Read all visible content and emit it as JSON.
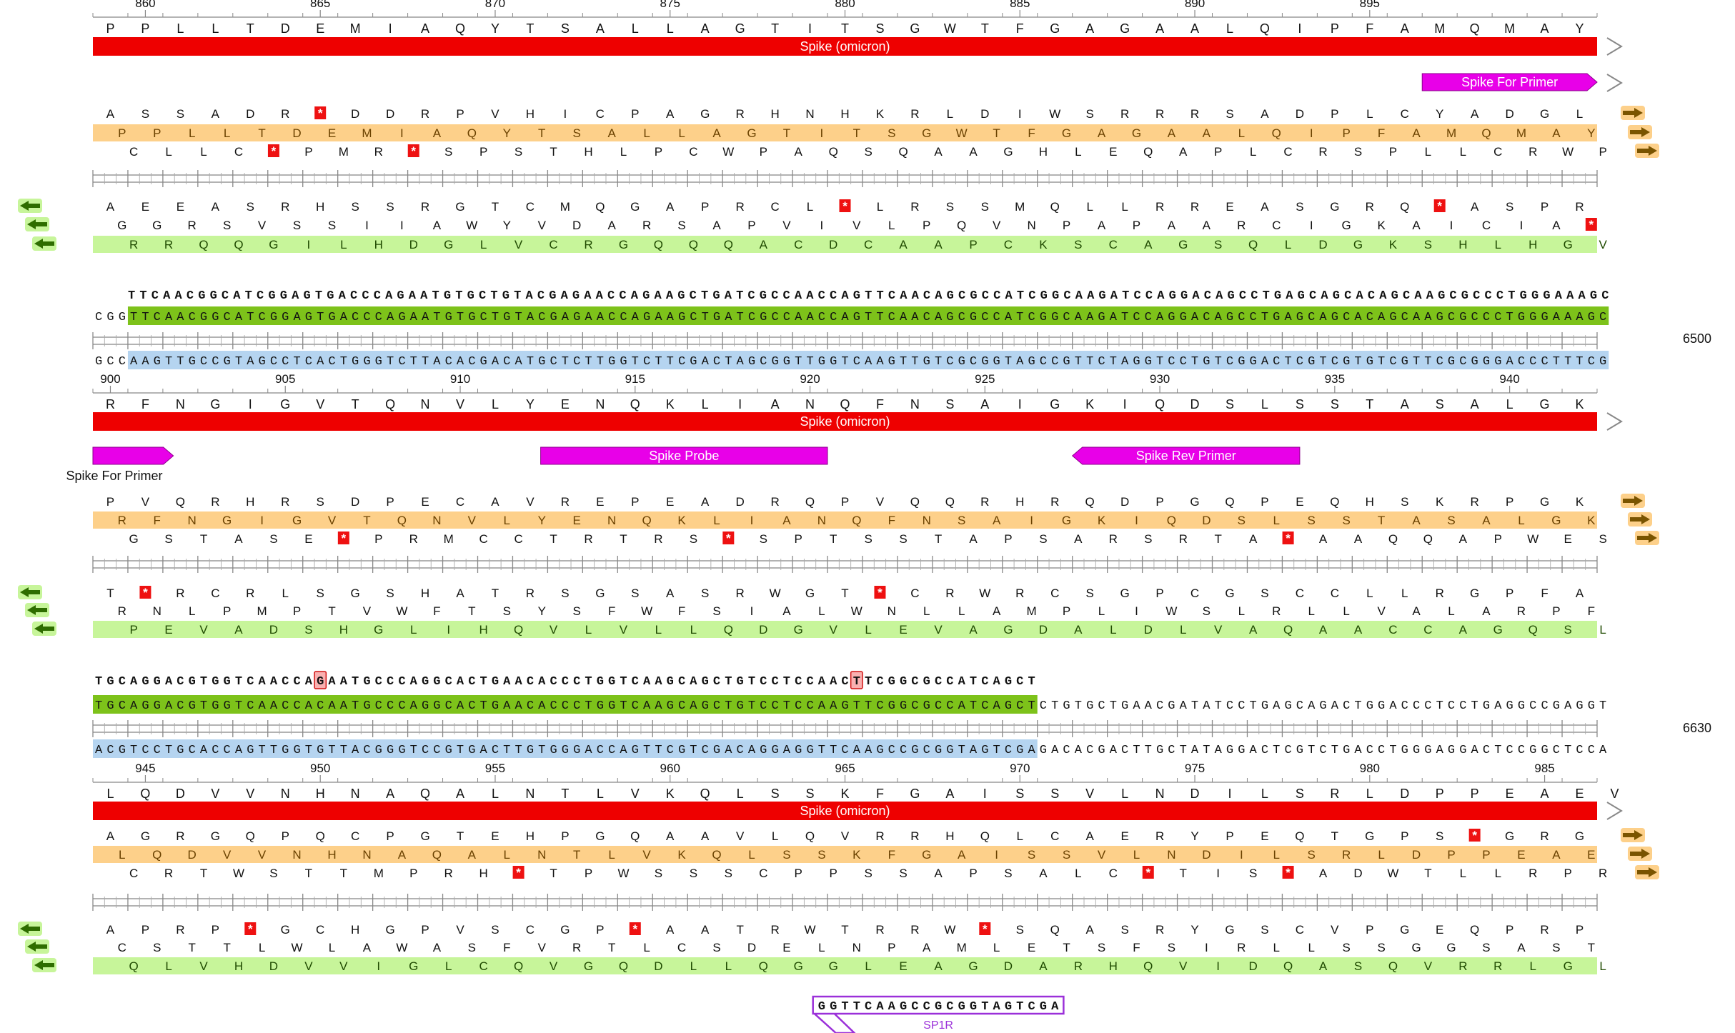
{
  "blocks": [
    {
      "num_row": {
        "marks": [
          {
            "label": "860",
            "num": 860
          },
          {
            "label": "865",
            "num": 865
          },
          {
            "label": "870",
            "num": 870
          },
          {
            "label": "875",
            "num": 875
          },
          {
            "label": "880",
            "num": 880
          },
          {
            "label": "885",
            "num": 885
          },
          {
            "label": "890",
            "num": 890
          },
          {
            "label": "895",
            "num": 895
          }
        ]
      },
      "aa_row": "PPLLTDEMIAQYTSALLAGTITSGWTFGAGAALQIPFAMQMAY",
      "feature_label": "Spike (omicron)",
      "primers": [
        {
          "label": "Spike For Primer",
          "dir": "right",
          "start": 38,
          "end": 43
        }
      ],
      "frames_top": [
        {
          "seq": "ASSADR*DDRPVHICPAGRHNHKRLDIWSRRRSADPLCYADGL",
          "style": "plain"
        },
        {
          "seq": "PPLLTDEMIAQYTSALLAGTITSGWTFGAGAALQIPFAMQMAY",
          "style": "orange"
        },
        {
          "seq": "CLLC*PMR*SPSTHLPCWPAQSQAAGHLEQAPLCRSPLLCRWPT",
          "style": "plain"
        }
      ],
      "frames_bottom": [
        {
          "seq": "AEEASRHSSRGTCMQGAPRCL*LRSSMQLLRREASGRQ*ASPRG",
          "style": "plain"
        },
        {
          "seq": "GGRSVSSIIAWYVDARSAPVIVLPQVNPAPAARCIGKAICIA*V",
          "style": "plain"
        },
        {
          "seq": "RRQQGILHDGLVCRGQQQACDCAAPCKSCAGSQLDGKSHLHGV",
          "style": "green"
        }
      ]
    },
    {
      "top_dna_label": "TTCAACGGCATCGGAGTGACCCAGAATGTGCTGTACGAGAACCAGAAGCTGATCGCCAACCAGTTCAACAGCGCCATCGGCAAGATCCAGGACAGCCTGAGCAGCACAGCAAGCGCCCTGGGAAAGC",
      "fwd_prefix": "CGG",
      "fwd_highlight": "TTCAACGGCATCGGAGTGACCCAGAATGTGCTGTACGAGAACCAGAAGCTGATCGCCAACCAGTTCAACAGCGCCATCGGCAAGATCCAGGACAGCCTGAGCAGCACAGCAAGCGCCCTGGGAAAGC",
      "fwd_suffix": "",
      "rev_prefix": "GCC",
      "rev_highlight": "AAGTTGCCGTAGCCTCACTGGGTCTTACACGACATGCTCTTGGTCTTCGACTAGCGGTTGGTCAAGTTGTCGCGGTAGCCGTTCTAGGTCCTGTCGGACTCGTCGTGTCGTTCGCGGGACCCTTTCG",
      "rev_suffix": "",
      "position_label": "6500",
      "num_row": {
        "marks": [
          {
            "label": "900",
            "num": 900
          },
          {
            "label": "905",
            "num": 905
          },
          {
            "label": "910",
            "num": 910
          },
          {
            "label": "915",
            "num": 915
          },
          {
            "label": "920",
            "num": 920
          },
          {
            "label": "925",
            "num": 925
          },
          {
            "label": "930",
            "num": 930
          },
          {
            "label": "935",
            "num": 935
          },
          {
            "label": "940",
            "num": 940
          }
        ]
      },
      "aa_row": "RFNGIGVTQNVLYENQKLIANQFNSAIGKIQDSLSSTASALGK",
      "feature_label": "Spike (omicron)",
      "primers": [
        {
          "label": "Spike For Primer",
          "dir": "right",
          "start": 0,
          "end": 2.3,
          "label_below": true
        },
        {
          "label": "Spike Probe",
          "dir": "none",
          "start": 12.8,
          "end": 21
        },
        {
          "label": "Spike Rev Primer",
          "dir": "left",
          "start": 28,
          "end": 34.5
        }
      ],
      "frames_top": [
        {
          "seq": "PVQRHRSDPECAVREPEADRQPVQQRHRQDPGQPEQHSKRPGKA",
          "style": "plain"
        },
        {
          "seq": "RFNGIGVTQNVLYENQKLIANQFNSAIGKIQDSLSSTASALGK",
          "style": "orange"
        },
        {
          "seq": "GSTASE*PRMCCTRTRS*SPTSSTAPSARSRTA*AAQQAPWES",
          "style": "plain"
        }
      ],
      "frames_bottom": [
        {
          "seq": "T*RCRLSGSHATRSGSASRWGT*CRWRCSGPCGSCCLLRGPFA",
          "style": "plain"
        },
        {
          "seq": "RNLPMPTVWFTSYSFWFSIALWNLLAMPLIWSLRLLVALARPFS",
          "style": "plain"
        },
        {
          "seq": "PEVADSHGLIHQVLVLLQDGVLEVAGDALDLVAQAACCAGQSL",
          "style": "green"
        }
      ]
    },
    {
      "top_dna_label": "TGCAGGACGTGGTCAACCAGAATGCCCAGGCACTGAACACCCTGGTCAAGCAGCTGTCCTCCAACTTCGGCGCCATCAGCT",
      "mismatch_indices": [
        19,
        65
      ],
      "fwd_prefix": "",
      "fwd_highlight": "TGCAGGACGTGGTCAACCACAATGCCCAGGCACTGAACACCCTGGTCAAGCAGCTGTCCTCCAAGTTCGGCGCCATCAGCT",
      "fwd_suffix": "CTGTGCTGAACGATATCCTGAGCAGACTGGACCCTCCTGAGGCCGAGGT",
      "rev_prefix": "",
      "rev_highlight": "ACGTCCTGCACCAGTTGGTGTTACGGGTCCGTGACTTGTGGGACCAGTTCGTCGACAGGAGGTTCAAGCCGCGGTAGTCGA",
      "rev_suffix": "GACACGACTTGCTATAGGACTCGTCTGACCTGGGAGGACTCCGGCTCCA",
      "position_label": "6630",
      "num_row": {
        "marks": [
          {
            "label": "945",
            "num": 945
          },
          {
            "label": "950",
            "num": 950
          },
          {
            "label": "955",
            "num": 955
          },
          {
            "label": "960",
            "num": 960
          },
          {
            "label": "965",
            "num": 965
          },
          {
            "label": "970",
            "num": 970
          },
          {
            "label": "975",
            "num": 975
          },
          {
            "label": "980",
            "num": 980
          },
          {
            "label": "985",
            "num": 985
          }
        ]
      },
      "aa_row": "LQDVVNHNAQALNTLVKQLSSKFGAISSVLNDILSRLDPPEAEV",
      "feature_label": "Spike (omicron)",
      "primers": [],
      "frames_top": [
        {
          "seq": "AGRGQPQCPGTEHPGQAAVLQVRRHQLCAERYPEQTGPS*GRG",
          "style": "plain"
        },
        {
          "seq": "LQDVVNHNAQALNTLVKQLSSKFGAISSVLNDILSRLDPPEAEV",
          "style": "orange"
        },
        {
          "seq": "CRTWSTTMPRH*TPWSSSCPPSSAPSALC*TIS*ADWTLLRPR",
          "style": "plain"
        }
      ],
      "frames_bottom": [
        {
          "seq": "APRP*GCHGPVSCGP*AATRWTRRW*SQASRYGSCVPGEQPRP",
          "style": "plain"
        },
        {
          "seq": "CSTTLWLAWASFVRTLCSDELNPAMLETSFSIRLLSSGGSAST",
          "style": "plain"
        },
        {
          "seq": "QLVHDVVIGLCQVGQDLLQGGLEAGDARHQVIDQASQVRRLGLH",
          "style": "green"
        }
      ],
      "sp1r": {
        "seq": "GGTTCAAGCCGCGGTAGTCGA",
        "label": "SP1R"
      }
    }
  ],
  "colors": {
    "red_feature": "#ee0000",
    "magenta_primer": "#e800e8",
    "orange_frame": "#fdd08a",
    "green_frame": "#c7f59a",
    "green_dna": "#7dc21a",
    "blue_dna": "#b5d4f0",
    "stop_red": "#ee1111",
    "purple_sp1r": "#9b30d9"
  },
  "icons": {
    "fwd_arrow": "orange-right-arrow-icon",
    "rev_arrow": "green-left-arrow-icon",
    "feature_end": "chevron-right-icon"
  }
}
